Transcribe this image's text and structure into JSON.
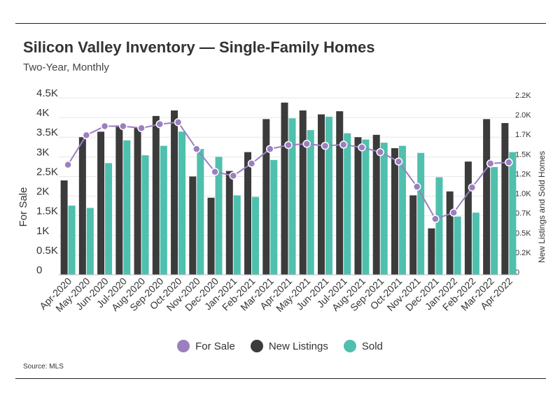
{
  "header": {
    "title": "Silicon Valley Inventory — Single-Family Homes",
    "subtitle": "Two-Year, Monthly"
  },
  "footer": {
    "source": "Source:  MLS"
  },
  "colors": {
    "for_sale": "#9b7fc0",
    "new_listings": "#3b3b3b",
    "sold": "#4fc0ad",
    "grid": "#e6e6e6"
  },
  "legend": [
    {
      "label": "For Sale",
      "color": "#9b7fc0"
    },
    {
      "label": "New Listings",
      "color": "#3b3b3b"
    },
    {
      "label": "Sold",
      "color": "#4fc0ad"
    }
  ],
  "chart_data": {
    "type": "bar",
    "categories": [
      "Apr-2020",
      "May-2020",
      "Jun-2020",
      "Jul-2020",
      "Aug-2020",
      "Sep-2020",
      "Oct-2020",
      "Nov-2020",
      "Dec-2020",
      "Jan-2021",
      "Feb-2021",
      "Mar-2021",
      "Apr-2021",
      "May-2021",
      "Jun-2021",
      "Jul-2021",
      "Aug-2021",
      "Sep-2021",
      "Oct-2021",
      "Nov-2021",
      "Dec-2021",
      "Jan-2022",
      "Feb-2022",
      "Mar-2022",
      "Apr-2022"
    ],
    "ylabel": "For Sale",
    "y2label": "New Listings and Sold Homes",
    "ylim": [
      0,
      4500
    ],
    "y2lim": [
      0,
      2250
    ],
    "yticks": [
      "0",
      "0.5K",
      "1K",
      "1.5K",
      "2K",
      "2.5K",
      "3K",
      "3.5K",
      "4K",
      "4.5K"
    ],
    "y2ticks": [
      "0",
      "0.2K",
      "0.5K",
      "0.7K",
      "1.0K",
      "1.2K",
      "1.5K",
      "1.7K",
      "2.0K",
      "2.2K"
    ],
    "grid": true,
    "legend_position": "bottom",
    "series": [
      {
        "name": "For Sale",
        "type": "line",
        "axis": "left",
        "values": [
          2800,
          3550,
          3780,
          3780,
          3730,
          3830,
          3880,
          3200,
          2620,
          2520,
          2830,
          3200,
          3300,
          3330,
          3280,
          3310,
          3240,
          3120,
          2880,
          2240,
          1420,
          1580,
          2220,
          2830,
          2860
        ]
      },
      {
        "name": "New Listings",
        "type": "bar",
        "axis": "right",
        "values": [
          1200,
          1750,
          1820,
          1900,
          1880,
          2020,
          2090,
          1250,
          980,
          1320,
          1560,
          1980,
          2190,
          2090,
          2040,
          2080,
          1750,
          1780,
          1610,
          1010,
          590,
          1060,
          1440,
          1980,
          1930
        ]
      },
      {
        "name": "Sold",
        "type": "bar",
        "axis": "right",
        "values": [
          880,
          850,
          1420,
          1710,
          1520,
          1640,
          1820,
          1600,
          1500,
          1010,
          990,
          1460,
          1990,
          1840,
          2010,
          1800,
          1720,
          1680,
          1640,
          1550,
          1240,
          740,
          790,
          1370,
          1560
        ]
      }
    ]
  }
}
